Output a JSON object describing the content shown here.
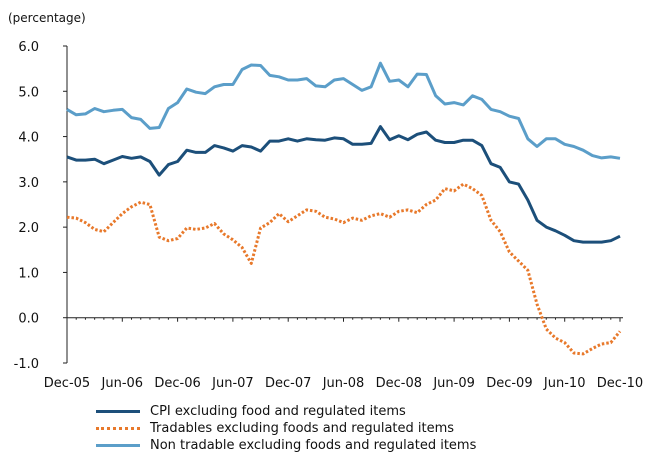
{
  "chart_data": {
    "type": "line",
    "unit_label": "(percentage)",
    "ylim": [
      -1.0,
      6.0
    ],
    "yticks": [
      "6.0",
      "5.0",
      "4.0",
      "3.0",
      "2.0",
      "1.0",
      "0.0",
      "-1.0"
    ],
    "ytick_values": [
      6,
      5,
      4,
      3,
      2,
      1,
      0,
      -1
    ],
    "x_months": [
      "Dec-05",
      "Jan-06",
      "Feb-06",
      "Mar-06",
      "Apr-06",
      "May-06",
      "Jun-06",
      "Jul-06",
      "Aug-06",
      "Sep-06",
      "Oct-06",
      "Nov-06",
      "Dec-06",
      "Jan-07",
      "Feb-07",
      "Mar-07",
      "Apr-07",
      "May-07",
      "Jun-07",
      "Jul-07",
      "Aug-07",
      "Sep-07",
      "Oct-07",
      "Nov-07",
      "Dec-07",
      "Jan-08",
      "Feb-08",
      "Mar-08",
      "Apr-08",
      "May-08",
      "Jun-08",
      "Jul-08",
      "Aug-08",
      "Sep-08",
      "Oct-08",
      "Nov-08",
      "Dec-08",
      "Jan-09",
      "Feb-09",
      "Mar-09",
      "Apr-09",
      "May-09",
      "Jun-09",
      "Jul-09",
      "Aug-09",
      "Sep-09",
      "Oct-09",
      "Nov-09",
      "Dec-09",
      "Jan-10",
      "Feb-10",
      "Mar-10",
      "Apr-10",
      "May-10",
      "Jun-10",
      "Jul-10",
      "Aug-10",
      "Sep-10",
      "Oct-10",
      "Nov-10",
      "Dec-10"
    ],
    "xtick_labels": [
      "Dec-05",
      "Jun-06",
      "Dec-06",
      "Jun-07",
      "Dec-07",
      "Jun-08",
      "Dec-08",
      "Jun-09",
      "Dec-09",
      "Jun-10",
      "Dec-10"
    ],
    "xtick_indices": [
      0,
      6,
      12,
      18,
      24,
      30,
      36,
      42,
      48,
      54,
      60
    ],
    "grid": false,
    "legend_position": "bottom",
    "series": [
      {
        "name": "CPI excluding food and regulated items",
        "color": "#1c4f7a",
        "style": "solid",
        "values": [
          3.55,
          3.48,
          3.48,
          3.5,
          3.4,
          3.48,
          3.56,
          3.52,
          3.55,
          3.45,
          3.15,
          3.38,
          3.45,
          3.7,
          3.65,
          3.65,
          3.8,
          3.75,
          3.68,
          3.8,
          3.77,
          3.68,
          3.9,
          3.9,
          3.95,
          3.9,
          3.95,
          3.93,
          3.92,
          3.97,
          3.95,
          3.83,
          3.83,
          3.85,
          4.22,
          3.93,
          4.02,
          3.93,
          4.05,
          4.1,
          3.92,
          3.87,
          3.87,
          3.92,
          3.92,
          3.8,
          3.4,
          3.32,
          3.0,
          2.95,
          2.6,
          2.15,
          2.0,
          1.92,
          1.82,
          1.7,
          1.67,
          1.67,
          1.67,
          1.7,
          1.8
        ]
      },
      {
        "name": "Tradables excluding foods and regulated items",
        "color": "#e8792b",
        "style": "dotted",
        "values": [
          2.22,
          2.2,
          2.1,
          1.95,
          1.9,
          2.1,
          2.3,
          2.45,
          2.55,
          2.5,
          1.78,
          1.7,
          1.75,
          1.98,
          1.95,
          1.98,
          2.08,
          1.85,
          1.72,
          1.55,
          1.2,
          1.98,
          2.1,
          2.3,
          2.12,
          2.25,
          2.38,
          2.35,
          2.22,
          2.18,
          2.1,
          2.2,
          2.15,
          2.25,
          2.3,
          2.22,
          2.35,
          2.38,
          2.32,
          2.5,
          2.6,
          2.85,
          2.8,
          2.95,
          2.85,
          2.7,
          2.15,
          1.9,
          1.45,
          1.25,
          1.05,
          0.3,
          -0.25,
          -0.45,
          -0.55,
          -0.78,
          -0.8,
          -0.68,
          -0.58,
          -0.55,
          -0.3
        ]
      },
      {
        "name": "Non tradable excluding foods and regulated items",
        "color": "#5b9ec9",
        "style": "solid",
        "values": [
          4.6,
          4.48,
          4.5,
          4.62,
          4.55,
          4.58,
          4.6,
          4.42,
          4.38,
          4.18,
          4.2,
          4.62,
          4.75,
          5.05,
          4.98,
          4.95,
          5.1,
          5.15,
          5.15,
          5.48,
          5.58,
          5.57,
          5.35,
          5.32,
          5.25,
          5.25,
          5.28,
          5.12,
          5.1,
          5.25,
          5.28,
          5.15,
          5.02,
          5.1,
          5.62,
          5.22,
          5.25,
          5.1,
          5.38,
          5.37,
          4.9,
          4.72,
          4.75,
          4.7,
          4.9,
          4.82,
          4.6,
          4.55,
          4.45,
          4.4,
          3.95,
          3.78,
          3.95,
          3.95,
          3.83,
          3.78,
          3.7,
          3.58,
          3.53,
          3.55,
          3.52
        ]
      }
    ]
  }
}
